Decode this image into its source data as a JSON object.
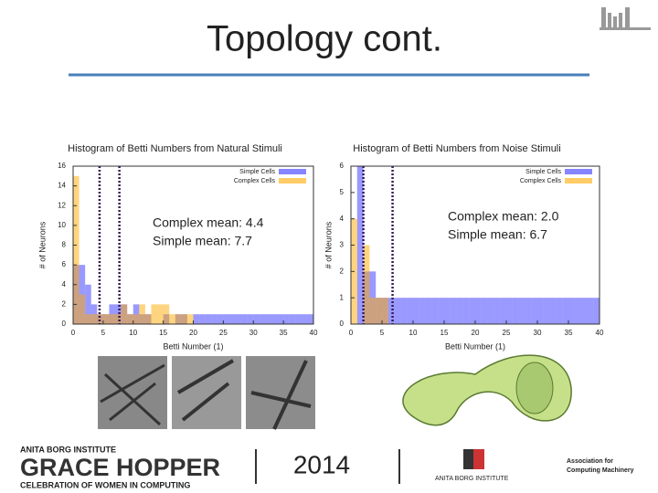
{
  "slide": {
    "title": "Topology cont."
  },
  "chart_data": [
    {
      "type": "histogram",
      "title": "Histogram of Betti Numbers from Natural Stimuli",
      "x_label": "Betti Number (1)",
      "y_label": "# of Neurons",
      "bins": [
        0,
        1,
        2,
        3,
        4,
        5,
        6,
        7,
        8,
        9,
        10,
        11,
        12,
        13,
        14,
        15,
        16,
        17,
        18,
        19,
        20,
        21,
        22,
        23,
        24,
        25,
        26,
        27,
        28,
        29,
        30,
        31,
        32,
        33,
        34,
        35,
        36,
        37,
        38,
        39,
        40
      ],
      "series": [
        {
          "name": "Simple Cells",
          "color": "#3333ff",
          "values": [
            6,
            6,
            4,
            2,
            1,
            1,
            2,
            2,
            2,
            1,
            2,
            1,
            1,
            0,
            0,
            1,
            0,
            1,
            1,
            0,
            1,
            1,
            1,
            1,
            1,
            1,
            1,
            1,
            1,
            1,
            1,
            1,
            1,
            1,
            1,
            1,
            1,
            1,
            1,
            1
          ]
        },
        {
          "name": "Complex Cells",
          "color": "#ffaa00",
          "values": [
            15,
            3,
            1,
            1,
            1,
            1,
            1,
            1,
            2,
            1,
            1,
            2,
            1,
            2,
            2,
            2,
            1,
            1,
            1,
            1,
            0,
            0,
            0,
            0,
            0,
            0,
            0,
            0,
            0,
            0,
            0,
            0,
            0,
            0,
            0,
            0,
            0,
            0,
            0,
            0
          ]
        }
      ],
      "mean_lines": [
        {
          "value": 4.4,
          "color": "#3a1a5a"
        },
        {
          "value": 7.7,
          "color": "#3a1a5a"
        }
      ],
      "annotations": [
        "Complex mean: 4.4",
        "Simple mean: 7.7"
      ],
      "xlim": [
        0,
        40
      ],
      "xticks": [
        0,
        5,
        10,
        15,
        20,
        25,
        30,
        35,
        40
      ],
      "ylim": [
        0,
        16
      ],
      "yticks": [
        0,
        2,
        4,
        6,
        8,
        10,
        12,
        14,
        16
      ],
      "legend": "upper right"
    },
    {
      "type": "histogram",
      "title": "Histogram of Betti Numbers from Noise Stimuli",
      "x_label": "Betti Number (1)",
      "y_label": "# of Neurons",
      "bins": [
        0,
        1,
        2,
        3,
        4,
        5,
        6,
        7,
        8,
        9,
        10,
        11,
        12,
        13,
        14,
        15,
        16,
        17,
        18,
        19,
        20,
        21,
        22,
        23,
        24,
        25,
        26,
        27,
        28,
        29,
        30,
        31,
        32,
        33,
        34,
        35,
        36,
        37,
        38,
        39,
        40
      ],
      "series": [
        {
          "name": "Simple Cells",
          "color": "#3333ff",
          "values": [
            0,
            6,
            2,
            2,
            1,
            1,
            1,
            1,
            1,
            1,
            1,
            1,
            1,
            1,
            1,
            1,
            1,
            1,
            1,
            1,
            1,
            1,
            1,
            1,
            1,
            1,
            1,
            1,
            1,
            1,
            1,
            1,
            1,
            1,
            1,
            1,
            1,
            1,
            1,
            1
          ]
        },
        {
          "name": "Complex Cells",
          "color": "#ffaa00",
          "values": [
            4,
            0,
            3,
            1,
            1,
            1,
            0,
            0,
            0,
            0,
            0,
            0,
            0,
            0,
            0,
            0,
            0,
            0,
            0,
            0,
            0,
            0,
            0,
            0,
            0,
            0,
            0,
            0,
            0,
            0,
            0,
            0,
            0,
            0,
            0,
            0,
            0,
            0,
            0,
            0
          ]
        }
      ],
      "mean_lines": [
        {
          "value": 2.0,
          "color": "#3a1a5a"
        },
        {
          "value": 6.7,
          "color": "#3a1a5a"
        }
      ],
      "annotations": [
        "Complex mean: 2.0",
        "Simple mean: 6.7"
      ],
      "xlim": [
        0,
        40
      ],
      "xticks": [
        0,
        5,
        10,
        15,
        20,
        25,
        30,
        35,
        40
      ],
      "ylim": [
        0,
        6
      ],
      "yticks": [
        0,
        1,
        2,
        3,
        4,
        5,
        6
      ],
      "legend": "upper right"
    }
  ],
  "footer": {
    "org": "ANITA BORG INSTITUTE",
    "event": "GRACE HOPPER",
    "tagline": "CELEBRATION OF WOMEN IN COMPUTING",
    "year": "2014",
    "partner1": "ANITA BORG INSTITUTE",
    "partner2": [
      "Association for",
      "Computing Machinery"
    ]
  }
}
